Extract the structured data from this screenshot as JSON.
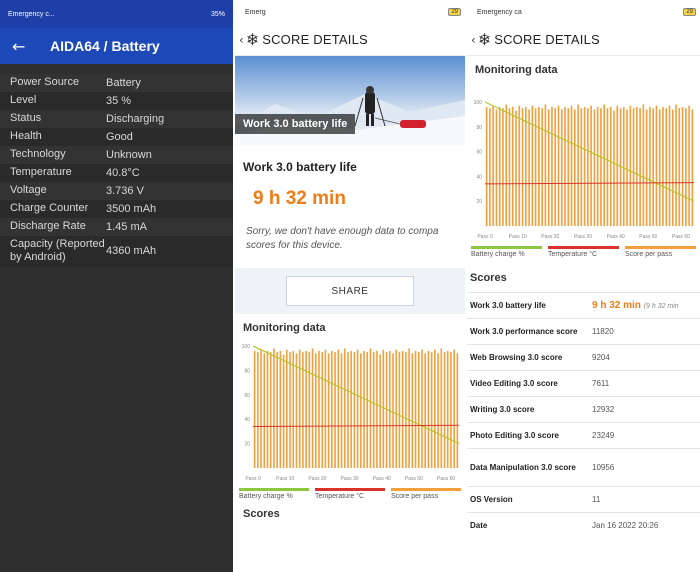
{
  "panel1": {
    "status_left": "Emergency c...",
    "status_right": "35%",
    "back_icon": "arrow-left-icon",
    "title": "AIDA64  /  Battery",
    "rows": [
      {
        "label": "Power Source",
        "value": "Battery"
      },
      {
        "label": "Level",
        "value": "35 %"
      },
      {
        "label": "Status",
        "value": "Discharging"
      },
      {
        "label": "Health",
        "value": "Good"
      },
      {
        "label": "Technology",
        "value": "Unknown"
      },
      {
        "label": "Temperature",
        "value": "40.8°C"
      },
      {
        "label": "Voltage",
        "value": "3.736 V"
      },
      {
        "label": "Charge Counter",
        "value": "3500 mAh"
      },
      {
        "label": "Discharge Rate",
        "value": "1.45 mA"
      },
      {
        "label": "Capacity (Reported by Android)",
        "value": "4360 mAh"
      }
    ]
  },
  "panel2": {
    "status_left": "Emerg",
    "battery_badge": "29",
    "header_title": "SCORE DETAILS",
    "hero_caption": "Work 3.0 battery life",
    "title": "Work 3.0 battery life",
    "time": "9 h 32 min",
    "sorry_line1": "Sorry, we don't have enough data to compa",
    "sorry_line2": "scores for this device.",
    "share_label": "SHARE",
    "monitoring_label": "Monitoring data",
    "scores_label": "Scores"
  },
  "panel3": {
    "status_left": "Emergency ca",
    "battery_badge": "29",
    "header_title": "SCORE DETAILS",
    "monitoring_label": "Monitoring data",
    "scores_label": "Scores",
    "scores": [
      {
        "label": "Work 3.0 battery life",
        "value": "9 h 32 min",
        "sub": "(9 h 32 min",
        "highlight": true
      },
      {
        "label": "Work 3.0 performance score",
        "value": "11820"
      },
      {
        "label": "Web Browsing 3.0 score",
        "value": "9204"
      },
      {
        "label": "Video Editing 3.0 score",
        "value": "7611"
      },
      {
        "label": "Writing 3.0 score",
        "value": "12932"
      },
      {
        "label": "Photo Editing 3.0 score",
        "value": "23249"
      },
      {
        "label": "Data Manipulation 3.0 score",
        "value": "10956"
      },
      {
        "label": "OS Version",
        "value": "11"
      },
      {
        "label": "Date",
        "value": "Jan 16 2022 20:26"
      }
    ]
  },
  "legend": [
    "Battery charge %",
    "Temperature °C",
    "Score per pass"
  ],
  "colors": {
    "battery": "#b5c52a",
    "temperature": "#d9342b",
    "score": "#f2a03d",
    "accent": "#ef7d17",
    "aida_blue": "#1d49b8"
  },
  "chart_data": {
    "type": "bar",
    "title": "",
    "x_ticks": [
      "Pass 0",
      "Pass 10",
      "Pass 20",
      "Pass 30",
      "Pass 40",
      "Pass 50",
      "Pass 60"
    ],
    "y_ticks": [
      100,
      80,
      60,
      40,
      20
    ],
    "ylim": [
      0,
      100
    ],
    "series": [
      {
        "name": "Battery charge %",
        "type": "line",
        "x": [
          0,
          64
        ],
        "values": [
          100,
          20
        ]
      },
      {
        "name": "Temperature °C",
        "type": "line",
        "x": [
          0,
          64
        ],
        "values": [
          34,
          35
        ]
      },
      {
        "name": "Score per pass",
        "type": "bar",
        "values": [
          96,
          95,
          97,
          94,
          96,
          95,
          98,
          95,
          96,
          93,
          97,
          95,
          96,
          94,
          97,
          95,
          96,
          95,
          98,
          94,
          96,
          95,
          97,
          94,
          96,
          95,
          97,
          94,
          98,
          95,
          96,
          95,
          97,
          94,
          96,
          95,
          98,
          95,
          96,
          93,
          97,
          95,
          96,
          94,
          97,
          95,
          96,
          95,
          98,
          94,
          96,
          95,
          97,
          94,
          96,
          95,
          97,
          94,
          98,
          95,
          96,
          95,
          97,
          94
        ]
      }
    ]
  }
}
